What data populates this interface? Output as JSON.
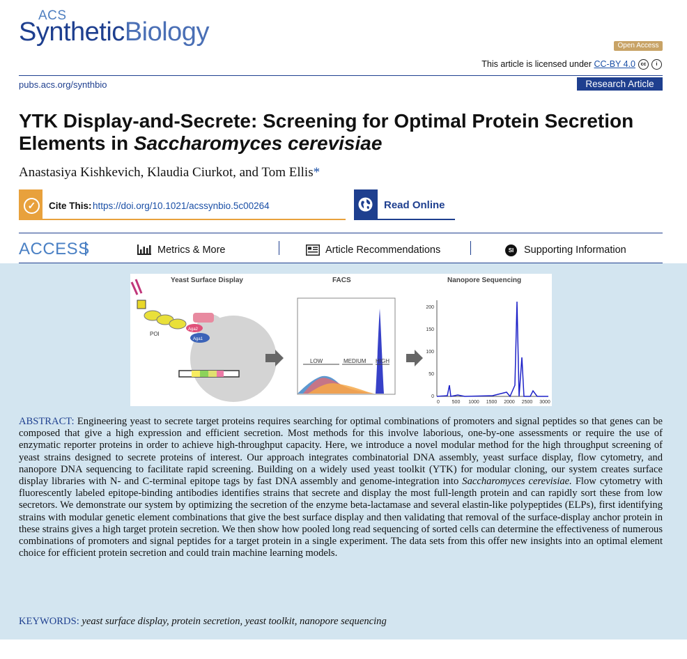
{
  "header": {
    "logo_acs": "ACS",
    "logo_synthetic": "Synthetic",
    "logo_biology": "Biology",
    "open_access": "Open Access",
    "license_prefix": "This article is licensed under ",
    "license_link": "CC-BY 4.0",
    "journal_url": "pubs.acs.org/synthbio",
    "article_type": "Research Article"
  },
  "article": {
    "title_part1": "YTK Display-and-Secrete: Screening for Optimal Protein Secretion Elements in ",
    "title_italic": "Saccharomyces cerevisiae",
    "authors": "Anastasiya Kishkevich, Klaudia Ciurkot, and Tom Ellis",
    "author_mark": "*"
  },
  "cite": {
    "label": "Cite This:",
    "doi": "https://doi.org/10.1021/acssynbio.5c00264",
    "read_online": "Read Online"
  },
  "nav": {
    "access": "ACCESS",
    "metrics": "Metrics & More",
    "recommendations": "Article Recommendations",
    "si_badge": "SI",
    "supporting": "Supporting Information"
  },
  "toc": {
    "panel1_title": "Yeast Surface Display",
    "panel1_poi": "POI",
    "panel1_aga2": "Aga2",
    "panel1_aga1": "Aga1",
    "panel2_title": "FACS",
    "panel2_low": "LOW",
    "panel2_medium": "MEDIUM",
    "panel2_high": "HIGH",
    "panel3_title": "Nanopore Sequencing",
    "panel3_y_ticks": [
      "200",
      "150",
      "100",
      "50",
      "0"
    ],
    "panel3_x_ticks": [
      "0",
      "500",
      "1000",
      "1500",
      "2000",
      "2500",
      "3000"
    ]
  },
  "abstract": {
    "label": "ABSTRACT:",
    "text_part1": " Engineering yeast to secrete target proteins requires searching for optimal combinations of promoters and signal peptides so that genes can be composed that give a high expression and efficient secretion. Most methods for this involve laborious, one-by-one assessments or require the use of enzymatic reporter proteins in order to achieve high-throughput capacity. Here, we introduce a novel modular method for the high throughput screening of yeast strains designed to secrete proteins of interest. Our approach integrates combinatorial DNA assembly, yeast surface display, flow cytometry, and nanopore DNA sequencing to facilitate rapid screening. Building on a widely used yeast toolkit (YTK) for modular cloning, our system creates surface display libraries with N- and C-terminal epitope tags by fast DNA assembly and genome-integration into ",
    "text_italic": "Saccharomyces cerevisiae.",
    "text_part2": " Flow cytometry with fluorescently labeled epitope-binding antibodies identifies strains that secrete and display the most full-length protein and can rapidly sort these from low secretors. We demonstrate our system by optimizing the secretion of the enzyme beta-lactamase and several elastin-like polypeptides (ELPs), first identifying strains with modular genetic element combinations that give the best surface display and then validating that removal of the surface-display anchor protein in these strains gives a high target protein secretion. We then show how pooled long read sequencing of sorted cells can determine the effectiveness of numerous combinations of promoters and signal peptides for a target protein in a single experiment. The data sets from this offer new insights into an optimal element choice for efficient protein secretion and could train machine learning models."
  },
  "keywords": {
    "label": "KEYWORDS:",
    "list": "yeast surface display, protein secretion, yeast toolkit, nanopore sequencing"
  },
  "colors": {
    "brand_blue": "#1e3f8f",
    "accent_orange": "#e8a13c",
    "open_access_gold": "#c8a366",
    "abstract_bg": "#d3e5f0"
  }
}
